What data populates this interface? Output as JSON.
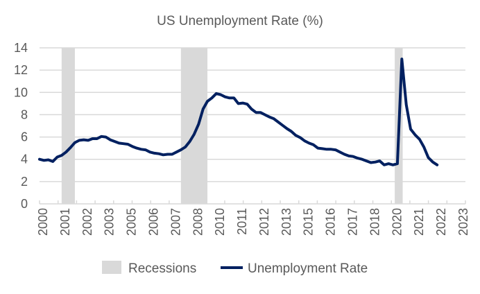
{
  "chart_data": {
    "type": "line",
    "title": "US Unemployment Rate (%)",
    "xlabel": "",
    "ylabel": "",
    "ylim": [
      0,
      14
    ],
    "yticks": [
      0,
      2,
      4,
      6,
      8,
      10,
      12,
      14
    ],
    "xlim": [
      2000,
      2024.1
    ],
    "xtick_labels": [
      "2000",
      "2001",
      "2002",
      "2003",
      "2005",
      "2006",
      "2007",
      "2008",
      "2010",
      "2011",
      "2012",
      "2013",
      "2015",
      "2016",
      "2017",
      "2018",
      "2020",
      "2021",
      "2022",
      "2023"
    ],
    "grid": true,
    "legend": {
      "placement": "bottom",
      "entries": [
        "Recessions",
        "Unemployment Rate"
      ]
    },
    "colors": {
      "line": "#002060",
      "recession": "#d9d9d9",
      "grid": "#d9d9d9",
      "text": "#595959"
    },
    "recessions": {
      "name": "Recessions",
      "periods": [
        [
          2001.25,
          2002.0
        ],
        [
          2008.0,
          2009.5
        ],
        [
          2020.1,
          2020.55
        ]
      ]
    },
    "series": [
      {
        "name": "Unemployment Rate",
        "x_start": 2000.0,
        "x_step": 0.25,
        "values": [
          4.0,
          3.9,
          3.95,
          3.8,
          4.2,
          4.35,
          4.65,
          5.05,
          5.5,
          5.7,
          5.75,
          5.7,
          5.85,
          5.85,
          6.05,
          6.0,
          5.75,
          5.6,
          5.45,
          5.4,
          5.35,
          5.15,
          5.0,
          4.9,
          4.85,
          4.65,
          4.55,
          4.5,
          4.4,
          4.45,
          4.45,
          4.65,
          4.85,
          5.1,
          5.6,
          6.25,
          7.15,
          8.5,
          9.2,
          9.5,
          9.9,
          9.8,
          9.6,
          9.5,
          9.5,
          9.0,
          9.05,
          8.95,
          8.5,
          8.2,
          8.2,
          8.0,
          7.8,
          7.65,
          7.35,
          7.05,
          6.75,
          6.5,
          6.15,
          5.95,
          5.65,
          5.45,
          5.3,
          5.0,
          4.95,
          4.9,
          4.9,
          4.85,
          4.65,
          4.45,
          4.3,
          4.25,
          4.1,
          4.0,
          3.85,
          3.7,
          3.75,
          3.85,
          3.5,
          3.6,
          3.5,
          3.6,
          13.0,
          8.9,
          6.7,
          6.2,
          5.8,
          5.1,
          4.15,
          3.75,
          3.5
        ]
      }
    ]
  }
}
